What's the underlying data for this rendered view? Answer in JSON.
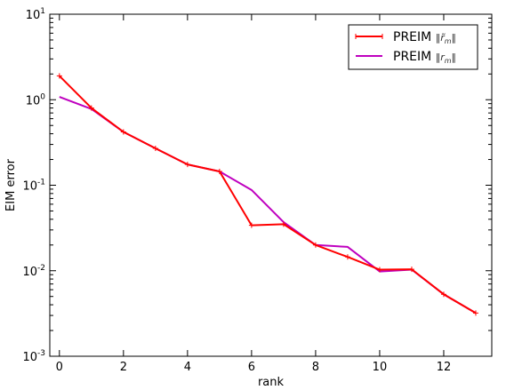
{
  "chart_data": {
    "type": "line",
    "xlabel": "rank",
    "ylabel": "EIM error",
    "xlim": [
      -0.3,
      13.5
    ],
    "ylim": [
      0.001,
      10
    ],
    "yscale": "log",
    "grid": false,
    "legend_position": "top-right",
    "x_ticks": [
      0,
      2,
      4,
      6,
      8,
      10,
      12
    ],
    "x_tick_labels": [
      "0",
      "2",
      "4",
      "6",
      "8",
      "10",
      "12"
    ],
    "y_tick_labels": [
      {
        "base": "10",
        "exp": "-3"
      },
      {
        "base": "10",
        "exp": "-2"
      },
      {
        "base": "10",
        "exp": "-1"
      },
      {
        "base": "10",
        "exp": "0"
      },
      {
        "base": "10",
        "exp": "1"
      }
    ],
    "x": [
      0,
      1,
      2,
      3,
      4,
      5,
      6,
      7,
      8,
      9,
      10,
      11,
      12,
      13
    ],
    "series": [
      {
        "name": "PREIM ‖r̃m‖",
        "legend_text": "PREIM",
        "legend_math_symbol": "r̃",
        "legend_math_sub": "m",
        "color": "#ff0000",
        "marker": "+",
        "values": [
          1.9,
          0.8,
          0.42,
          0.27,
          0.175,
          0.145,
          0.034,
          0.035,
          0.02,
          0.0145,
          0.0103,
          0.0104,
          0.0053,
          0.0032
        ]
      },
      {
        "name": "PREIM ‖rm‖",
        "legend_text": "PREIM",
        "legend_math_symbol": "r",
        "legend_math_sub": "m",
        "color": "#bf00bf",
        "marker": "",
        "values": [
          1.08,
          0.78,
          0.42,
          0.27,
          0.175,
          0.145,
          0.088,
          0.037,
          0.02,
          0.019,
          0.0098,
          0.0103,
          0.0053,
          0.0032
        ]
      }
    ]
  }
}
